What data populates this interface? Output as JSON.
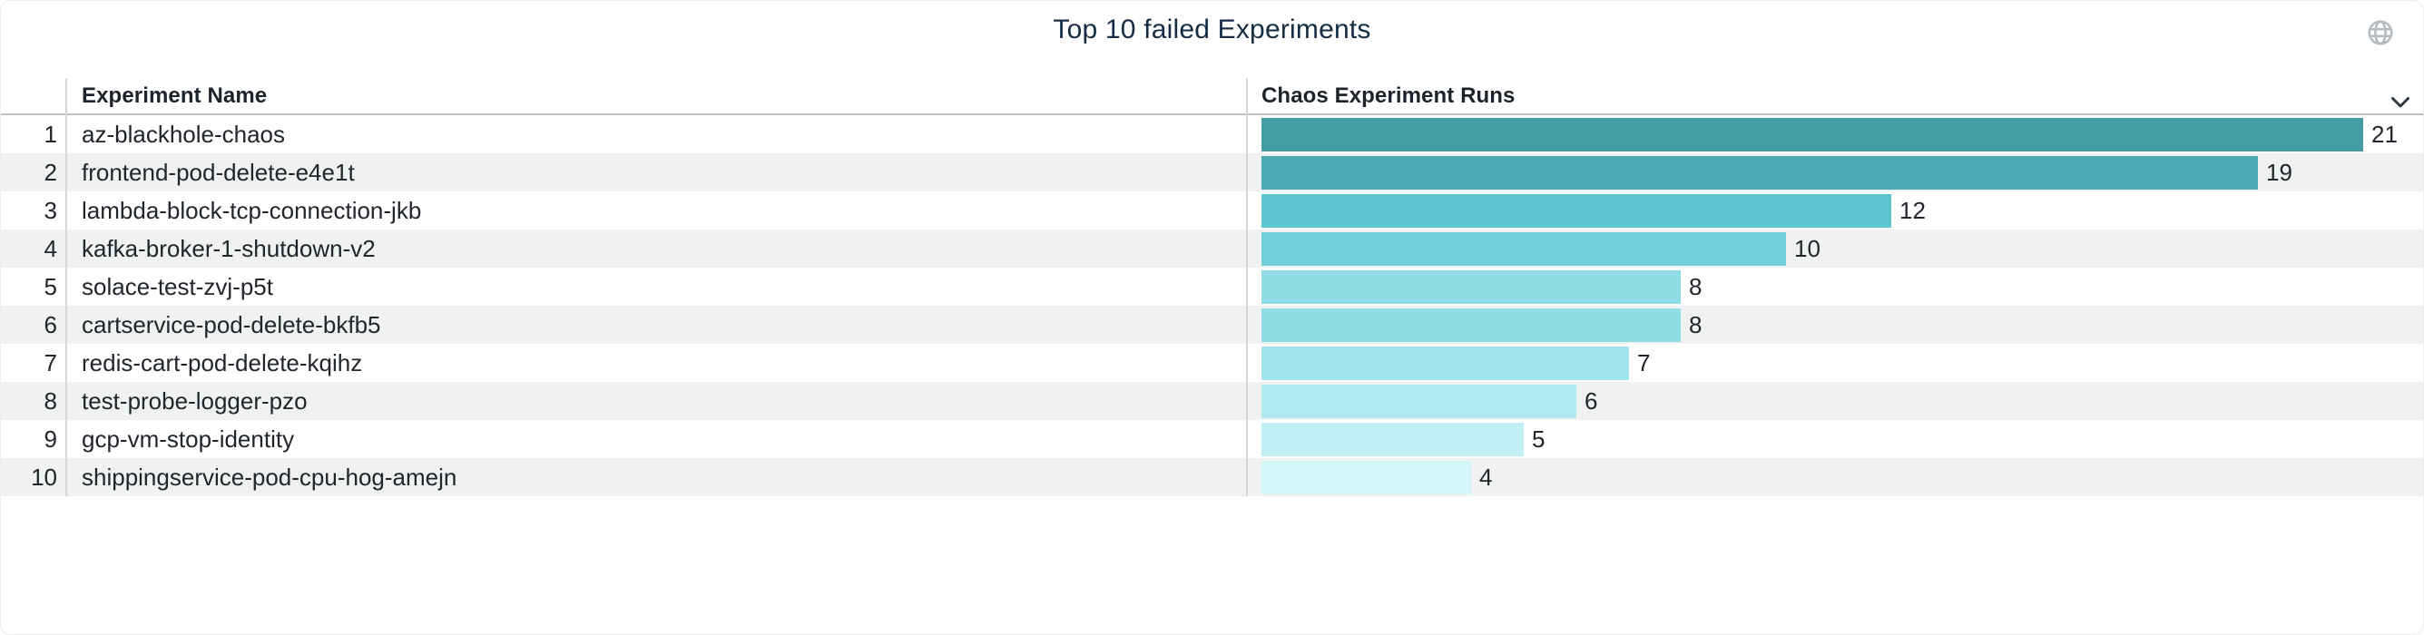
{
  "panel": {
    "title": "Top 10 failed Experiments"
  },
  "icons": {
    "globe": "globe-icon",
    "chevron": "chevron-down-icon"
  },
  "colors": {
    "title_text": "#152c42",
    "header_text": "#1c232a",
    "body_text": "#20262c",
    "zebra_row": "#f0f1f1",
    "header_underline": "#bdc3c8",
    "column_separator": "#d5d8da",
    "globe_icon": "#b2bac2",
    "chevron_icon": "#2e3842",
    "panel_border": "#ededee"
  },
  "table": {
    "columns": [
      {
        "label": "Experiment Name"
      },
      {
        "label": "Chaos Experiment Runs"
      }
    ],
    "rows": [
      {
        "rank": "1",
        "name": "az-blackhole-chaos",
        "runs": 21,
        "bar_color": "#459ca4"
      },
      {
        "rank": "2",
        "name": "frontend-pod-delete-e4e1t",
        "runs": 19,
        "bar_color": "#4fa9b2"
      },
      {
        "rank": "3",
        "name": "lambda-block-tcp-connection-jkb",
        "runs": 12,
        "bar_color": "#5ec6d1"
      },
      {
        "rank": "4",
        "name": "kafka-broker-1-shutdown-v2",
        "runs": 10,
        "bar_color": "#73cfda"
      },
      {
        "rank": "5",
        "name": "solace-test-zvj-p5t",
        "runs": 8,
        "bar_color": "#8fdde5"
      },
      {
        "rank": "6",
        "name": "cartservice-pod-delete-bkfb5",
        "runs": 8,
        "bar_color": "#91dde6"
      },
      {
        "rank": "7",
        "name": "redis-cart-pod-delete-kqihz",
        "runs": 7,
        "bar_color": "#a2e4eb"
      },
      {
        "rank": "8",
        "name": "test-probe-logger-pzo",
        "runs": 6,
        "bar_color": "#b1e9ef"
      },
      {
        "rank": "9",
        "name": "gcp-vm-stop-identity",
        "runs": 5,
        "bar_color": "#c1eff4"
      },
      {
        "rank": "10",
        "name": "shippingservice-pod-cpu-hog-amejn",
        "runs": 4,
        "bar_color": "#d2f5f8"
      }
    ]
  },
  "chart_data": {
    "type": "bar",
    "orientation": "horizontal",
    "title": "Top 10 failed Experiments",
    "series_label": "Chaos Experiment Runs",
    "categories": [
      "az-blackhole-chaos",
      "frontend-pod-delete-e4e1t",
      "lambda-block-tcp-connection-jkb",
      "kafka-broker-1-shutdown-v2",
      "solace-test-zvj-p5t",
      "cartservice-pod-delete-bkfb5",
      "redis-cart-pod-delete-kqihz",
      "test-probe-logger-pzo",
      "gcp-vm-stop-identity",
      "shippingservice-pod-cpu-hog-amejn"
    ],
    "values": [
      21,
      19,
      12,
      10,
      8,
      8,
      7,
      6,
      5,
      4
    ],
    "value_labels_shown": true,
    "xlim": [
      0,
      21
    ],
    "grid": false,
    "legend": "none",
    "bar_colors": [
      "#459ca4",
      "#4fa9b2",
      "#5ec6d1",
      "#73cfda",
      "#8fdde5",
      "#91dde6",
      "#a2e4eb",
      "#b1e9ef",
      "#c1eff4",
      "#d2f5f8"
    ]
  }
}
